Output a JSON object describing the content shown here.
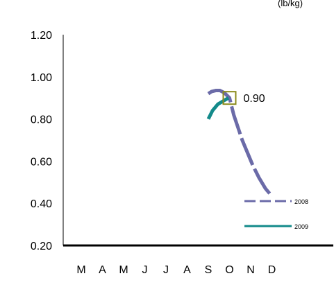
{
  "chart_data": {
    "type": "line",
    "title": "",
    "title_partial": "(lb/kg)",
    "xlabel": "",
    "ylabel": "",
    "categories": [
      "M",
      "A",
      "M",
      "J",
      "J",
      "A",
      "S",
      "O",
      "N",
      "D"
    ],
    "yticks": [
      "0.20",
      "0.40",
      "0.60",
      "0.80",
      "1.00",
      "1.20"
    ],
    "ylim": [
      0.2,
      1.2
    ],
    "grid": false,
    "legend_position": "bottom-right",
    "series": [
      {
        "name": "2008",
        "color": "#6b6ba8",
        "dash": "dashed",
        "points": [
          {
            "x": 6.0,
            "y": 0.92
          },
          {
            "x": 6.15,
            "y": 0.93
          },
          {
            "x": 6.35,
            "y": 0.935
          },
          {
            "x": 6.55,
            "y": 0.935
          },
          {
            "x": 6.75,
            "y": 0.925
          },
          {
            "x": 7.0,
            "y": 0.9
          },
          {
            "x": 7.2,
            "y": 0.82
          },
          {
            "x": 7.4,
            "y": 0.76
          },
          {
            "x": 7.6,
            "y": 0.7
          },
          {
            "x": 7.85,
            "y": 0.64
          },
          {
            "x": 8.1,
            "y": 0.58
          },
          {
            "x": 8.4,
            "y": 0.52
          },
          {
            "x": 8.7,
            "y": 0.47
          },
          {
            "x": 8.95,
            "y": 0.44
          }
        ]
      },
      {
        "name": "2009",
        "color": "#138a8a",
        "dash": "solid",
        "points": [
          {
            "x": 6.0,
            "y": 0.8
          },
          {
            "x": 6.2,
            "y": 0.84
          },
          {
            "x": 6.45,
            "y": 0.87
          },
          {
            "x": 6.7,
            "y": 0.885
          },
          {
            "x": 6.95,
            "y": 0.9
          }
        ]
      }
    ],
    "marker": {
      "x": 7.0,
      "y": 0.9,
      "color": "#8a8a1a"
    },
    "annotation": {
      "text": "0.90",
      "x": 7.0,
      "y": 0.9
    }
  }
}
